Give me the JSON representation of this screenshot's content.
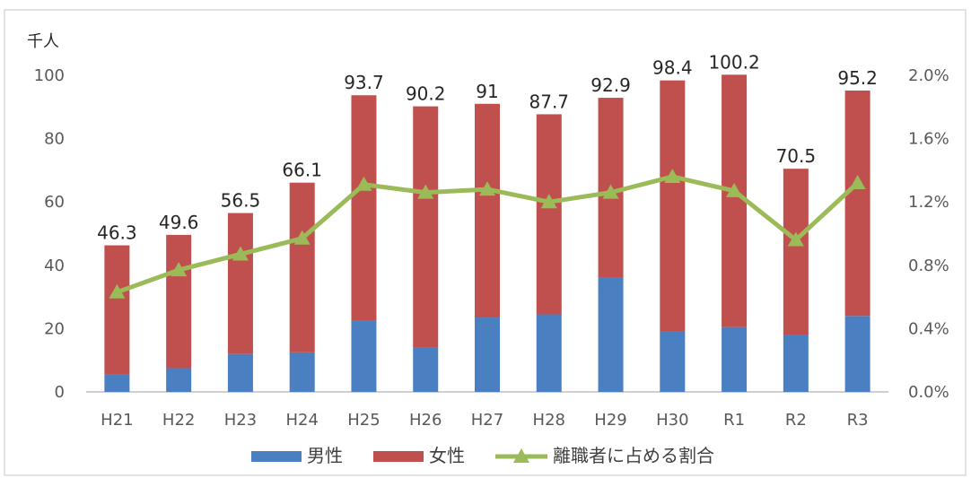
{
  "chart_data": {
    "type": "bar",
    "stacked": true,
    "y_unit_label": "千人",
    "categories": [
      "H21",
      "H22",
      "H23",
      "H24",
      "H25",
      "H26",
      "H27",
      "H28",
      "H29",
      "H30",
      "R1",
      "R2",
      "R3"
    ],
    "series": [
      {
        "name": "男性",
        "kind": "bar",
        "axis": "left",
        "color": "#4a7fc1",
        "values": [
          5.5,
          7.5,
          12.0,
          12.5,
          22.5,
          14.0,
          23.5,
          24.5,
          36.0,
          19.0,
          20.5,
          18.0,
          24.0
        ]
      },
      {
        "name": "女性",
        "kind": "bar",
        "axis": "left",
        "color": "#c0504d",
        "values": [
          40.8,
          42.1,
          44.5,
          53.6,
          71.2,
          76.2,
          67.5,
          63.2,
          56.9,
          79.4,
          79.7,
          52.5,
          71.2
        ]
      },
      {
        "name": "離職者に占める割合",
        "kind": "line",
        "axis": "right",
        "color": "#9bbb59",
        "marker": "triangle",
        "values": [
          0.63,
          0.77,
          0.87,
          0.97,
          1.31,
          1.26,
          1.28,
          1.2,
          1.26,
          1.36,
          1.27,
          0.96,
          1.32
        ]
      }
    ],
    "totals": [
      "46.3",
      "49.6",
      "56.5",
      "66.1",
      "93.7",
      "90.2",
      "91",
      "87.7",
      "92.9",
      "98.4",
      "100.2",
      "70.5",
      "95.2"
    ],
    "y_left": {
      "min": 0,
      "max": 100,
      "ticks": [
        "0",
        "20",
        "40",
        "60",
        "80",
        "100"
      ]
    },
    "y_right": {
      "min": 0,
      "max": 2.0,
      "ticks": [
        "0.0%",
        "0.4%",
        "0.8%",
        "1.2%",
        "1.6%",
        "2.0%"
      ]
    },
    "legend_position": "bottom",
    "grid": false
  }
}
